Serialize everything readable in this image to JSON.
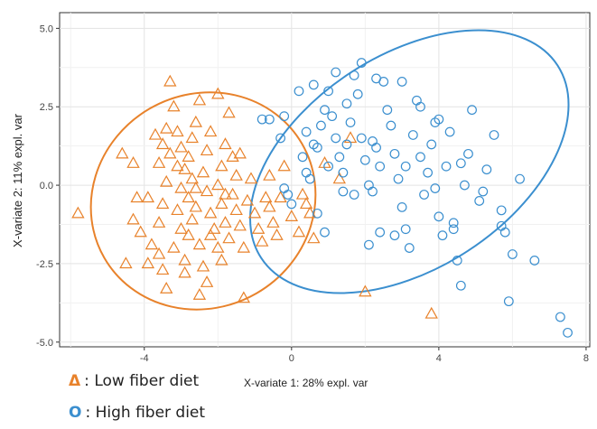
{
  "chart_data": {
    "type": "scatter",
    "xlabel": "X-variate 1: 28% expl. var",
    "ylabel": "X-variate 2: 11% expl. var",
    "xlim": [
      -6.3,
      8.1
    ],
    "ylim": [
      -5.15,
      5.5
    ],
    "x_ticks": [
      -4,
      0,
      4,
      8
    ],
    "x_tick_labels": [
      "-4",
      "0",
      "4",
      "8"
    ],
    "y_ticks": [
      -5,
      -2.5,
      0,
      2.5,
      5
    ],
    "y_tick_labels": [
      "-5.0",
      "-2.5",
      "0.0",
      "2.5",
      "5.0"
    ],
    "grid": true,
    "legend_position": "bottom-left",
    "series": [
      {
        "name": "Low fiber diet",
        "legend_symbol": "Δ",
        "marker": "triangle",
        "color": "#E8822B",
        "ellipse": {
          "cx": -2.4,
          "cy": -0.5,
          "rx": 3.1,
          "ry": 3.4,
          "angle_deg": -30
        },
        "points": [
          [
            -5.8,
            -0.9
          ],
          [
            -4.6,
            1.0
          ],
          [
            -4.3,
            0.7
          ],
          [
            -4.2,
            -0.4
          ],
          [
            -4.3,
            -1.1
          ],
          [
            -4.1,
            -1.5
          ],
          [
            -4.5,
            -2.5
          ],
          [
            -3.9,
            -2.5
          ],
          [
            -3.8,
            -1.9
          ],
          [
            -3.6,
            -2.2
          ],
          [
            -3.5,
            -2.7
          ],
          [
            -3.4,
            -3.3
          ],
          [
            -3.6,
            -1.2
          ],
          [
            -3.5,
            -0.6
          ],
          [
            -3.4,
            0.1
          ],
          [
            -3.6,
            0.7
          ],
          [
            -3.5,
            1.3
          ],
          [
            -3.4,
            1.8
          ],
          [
            -3.3,
            3.3
          ],
          [
            -3.2,
            2.5
          ],
          [
            -3.1,
            1.7
          ],
          [
            -3.0,
            1.2
          ],
          [
            -3.1,
            0.6
          ],
          [
            -3.0,
            -0.1
          ],
          [
            -3.1,
            -0.8
          ],
          [
            -3.0,
            -1.4
          ],
          [
            -3.2,
            -2.0
          ],
          [
            -2.9,
            -2.4
          ],
          [
            -2.8,
            -1.6
          ],
          [
            -2.7,
            -1.1
          ],
          [
            -2.8,
            -0.4
          ],
          [
            -2.7,
            0.2
          ],
          [
            -2.8,
            0.9
          ],
          [
            -2.7,
            1.5
          ],
          [
            -2.6,
            2.0
          ],
          [
            -2.5,
            2.7
          ],
          [
            -2.6,
            -0.7
          ],
          [
            -2.5,
            -1.9
          ],
          [
            -2.4,
            -2.6
          ],
          [
            -2.3,
            -3.1
          ],
          [
            -2.5,
            -3.5
          ],
          [
            -2.4,
            0.4
          ],
          [
            -2.3,
            1.1
          ],
          [
            -2.2,
            1.7
          ],
          [
            -2.3,
            -0.2
          ],
          [
            -2.2,
            -0.9
          ],
          [
            -2.1,
            -1.4
          ],
          [
            -2.0,
            -2.0
          ],
          [
            -1.9,
            -2.4
          ],
          [
            -2.0,
            0.0
          ],
          [
            -1.9,
            0.6
          ],
          [
            -1.8,
            1.3
          ],
          [
            -1.7,
            2.3
          ],
          [
            -1.9,
            -0.6
          ],
          [
            -1.8,
            -1.2
          ],
          [
            -1.7,
            -1.7
          ],
          [
            -1.6,
            -0.3
          ],
          [
            -1.5,
            0.3
          ],
          [
            -1.6,
            0.9
          ],
          [
            -1.4,
            1.0
          ],
          [
            -1.5,
            -0.8
          ],
          [
            -1.4,
            -1.3
          ],
          [
            -1.3,
            -2.0
          ],
          [
            -1.2,
            -0.5
          ],
          [
            -1.1,
            0.2
          ],
          [
            -1.3,
            -3.6
          ],
          [
            -1.0,
            -0.9
          ],
          [
            -0.9,
            -1.4
          ],
          [
            -0.8,
            -1.8
          ],
          [
            -0.6,
            -0.7
          ],
          [
            -0.5,
            -1.2
          ],
          [
            -0.4,
            -1.6
          ],
          [
            -0.6,
            0.3
          ],
          [
            -0.3,
            -0.4
          ],
          [
            -0.2,
            0.6
          ],
          [
            0.0,
            -1.0
          ],
          [
            0.2,
            -1.5
          ],
          [
            0.4,
            -0.6
          ],
          [
            0.3,
            -0.3
          ],
          [
            0.5,
            -0.9
          ],
          [
            0.6,
            -1.7
          ],
          [
            0.9,
            0.7
          ],
          [
            1.3,
            0.2
          ],
          [
            1.6,
            1.5
          ],
          [
            2.0,
            -3.4
          ],
          [
            3.8,
            -4.1
          ],
          [
            -3.7,
            1.6
          ],
          [
            -3.3,
            1.0
          ],
          [
            -2.9,
            0.5
          ],
          [
            -2.6,
            -0.1
          ],
          [
            -2.2,
            -1.6
          ],
          [
            -1.8,
            -0.3
          ],
          [
            -2.9,
            -2.8
          ],
          [
            -3.9,
            -0.4
          ],
          [
            -2.0,
            2.9
          ],
          [
            -0.7,
            -0.4
          ]
        ]
      },
      {
        "name": "High fiber diet",
        "legend_symbol": "O",
        "marker": "circle",
        "color": "#3B8FCF",
        "ellipse": {
          "cx": 3.2,
          "cy": 0.75,
          "rx": 4.8,
          "ry": 3.4,
          "angle_deg": -33
        },
        "points": [
          [
            -0.8,
            2.1
          ],
          [
            -0.6,
            2.1
          ],
          [
            -0.3,
            1.5
          ],
          [
            -0.2,
            -0.1
          ],
          [
            -0.1,
            -0.3
          ],
          [
            0.0,
            -0.6
          ],
          [
            0.3,
            0.9
          ],
          [
            0.4,
            0.4
          ],
          [
            0.5,
            0.2
          ],
          [
            0.6,
            1.3
          ],
          [
            0.7,
            1.2
          ],
          [
            0.8,
            1.9
          ],
          [
            0.9,
            2.4
          ],
          [
            1.0,
            3.0
          ],
          [
            1.1,
            2.2
          ],
          [
            1.2,
            1.5
          ],
          [
            1.3,
            0.9
          ],
          [
            1.4,
            0.4
          ],
          [
            1.5,
            2.6
          ],
          [
            1.6,
            2.0
          ],
          [
            1.7,
            3.5
          ],
          [
            1.8,
            2.9
          ],
          [
            1.9,
            1.5
          ],
          [
            2.0,
            0.8
          ],
          [
            2.1,
            0.0
          ],
          [
            2.2,
            -0.2
          ],
          [
            2.3,
            1.2
          ],
          [
            2.4,
            0.6
          ],
          [
            2.5,
            3.3
          ],
          [
            2.6,
            2.4
          ],
          [
            2.7,
            1.9
          ],
          [
            2.8,
            1.0
          ],
          [
            2.9,
            0.2
          ],
          [
            3.0,
            -0.7
          ],
          [
            3.1,
            -1.4
          ],
          [
            3.2,
            -2.0
          ],
          [
            3.3,
            1.6
          ],
          [
            3.4,
            2.7
          ],
          [
            3.5,
            0.9
          ],
          [
            3.6,
            -0.3
          ],
          [
            3.7,
            0.4
          ],
          [
            3.8,
            1.3
          ],
          [
            3.9,
            2.0
          ],
          [
            4.0,
            -1.0
          ],
          [
            4.1,
            -1.6
          ],
          [
            4.2,
            0.6
          ],
          [
            4.3,
            1.7
          ],
          [
            4.4,
            -1.2
          ],
          [
            4.5,
            -2.4
          ],
          [
            4.6,
            -3.2
          ],
          [
            4.7,
            0.0
          ],
          [
            4.8,
            1.0
          ],
          [
            4.9,
            2.4
          ],
          [
            5.1,
            -0.5
          ],
          [
            5.3,
            0.5
          ],
          [
            5.5,
            1.6
          ],
          [
            5.7,
            -0.8
          ],
          [
            5.8,
            -1.5
          ],
          [
            6.0,
            -2.2
          ],
          [
            6.2,
            0.2
          ],
          [
            6.6,
            -2.4
          ],
          [
            5.9,
            -3.7
          ],
          [
            7.3,
            -4.2
          ],
          [
            7.5,
            -4.7
          ],
          [
            0.2,
            3.0
          ],
          [
            0.6,
            3.2
          ],
          [
            1.2,
            3.6
          ],
          [
            1.9,
            3.9
          ],
          [
            2.3,
            3.4
          ],
          [
            3.0,
            3.3
          ],
          [
            3.5,
            2.5
          ],
          [
            4.0,
            2.1
          ],
          [
            1.4,
            -0.2
          ],
          [
            1.7,
            -0.3
          ],
          [
            2.4,
            -1.5
          ],
          [
            2.1,
            -1.9
          ],
          [
            0.9,
            -1.5
          ],
          [
            0.4,
            1.7
          ],
          [
            -0.2,
            2.2
          ],
          [
            1.0,
            0.6
          ],
          [
            2.8,
            -1.6
          ],
          [
            3.9,
            -0.1
          ],
          [
            4.4,
            -1.4
          ],
          [
            5.2,
            -0.2
          ],
          [
            4.6,
            0.7
          ],
          [
            3.1,
            0.6
          ],
          [
            2.2,
            1.4
          ],
          [
            1.5,
            1.3
          ],
          [
            0.7,
            -0.9
          ],
          [
            5.7,
            -1.3
          ]
        ]
      }
    ]
  }
}
